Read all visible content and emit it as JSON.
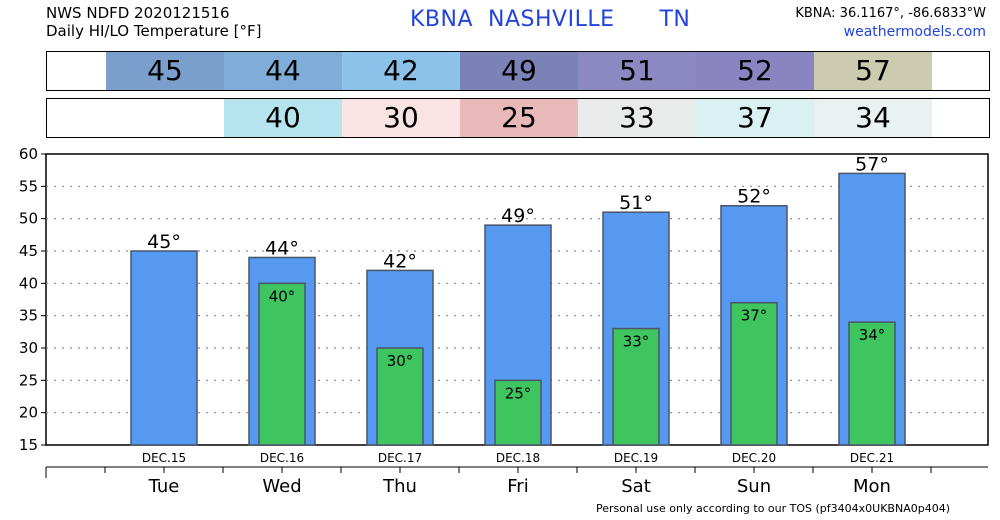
{
  "header": {
    "line1": "NWS NDFD 2020121516",
    "line2": "Daily HI/LO Temperature [°F]",
    "station": "KBNA  NASHVILLE      TN",
    "coords": "KBNA: 36.1167°, -86.6833°W",
    "site": "weathermodels.com"
  },
  "footer": "Personal use only according to our TOS (pf3404x0UKBNA0p404)",
  "hi_row": [
    {
      "value": "45",
      "color": "#7b9fcd"
    },
    {
      "value": "44",
      "color": "#80acd9"
    },
    {
      "value": "42",
      "color": "#8cc1ea"
    },
    {
      "value": "49",
      "color": "#7a82b8"
    },
    {
      "value": "51",
      "color": "#8b88c2"
    },
    {
      "value": "52",
      "color": "#8a84c0"
    },
    {
      "value": "57",
      "color": "#cdcbaf"
    }
  ],
  "lo_row": [
    {
      "value": "40",
      "color": "#b5e4ef"
    },
    {
      "value": "30",
      "color": "#fae3e3"
    },
    {
      "value": "25",
      "color": "#e9b9b9"
    },
    {
      "value": "33",
      "color": "#e9ebea"
    },
    {
      "value": "37",
      "color": "#daf1f1"
    },
    {
      "value": "34",
      "color": "#e9f1f1"
    }
  ],
  "chart_data": {
    "type": "bar",
    "categories": [
      "Tue",
      "Wed",
      "Thu",
      "Fri",
      "Sat",
      "Sun",
      "Mon"
    ],
    "dates": [
      "DEC.15",
      "DEC.16",
      "DEC.17",
      "DEC.18",
      "DEC.19",
      "DEC.20",
      "DEC.21"
    ],
    "series": [
      {
        "values": [
          45,
          44,
          42,
          49,
          51,
          52,
          57
        ],
        "labels": [
          "45°",
          "44°",
          "42°",
          "49°",
          "51°",
          "52°",
          "57°"
        ],
        "color": "#5599f0"
      },
      {
        "values": [
          null,
          40,
          30,
          25,
          33,
          37,
          34
        ],
        "labels": [
          "",
          "40°",
          "30°",
          "25°",
          "33°",
          "37°",
          "34°"
        ],
        "color": "#3ec55f"
      }
    ],
    "ylim": [
      15,
      60
    ],
    "yticks": [
      "15",
      "20",
      "25",
      "30",
      "35",
      "40",
      "45",
      "50",
      "55",
      "60"
    ],
    "grid": true
  }
}
